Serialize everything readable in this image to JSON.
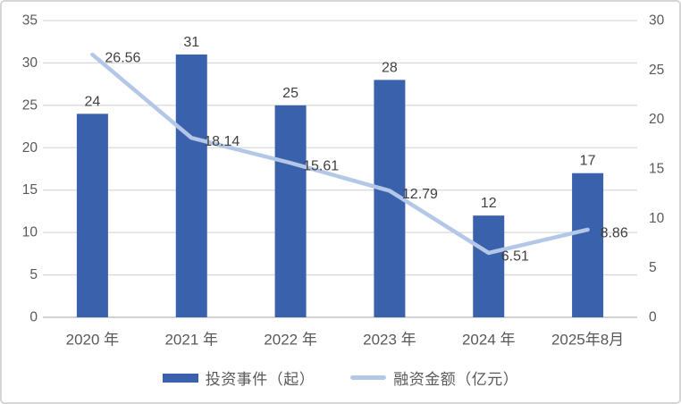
{
  "frame": {
    "background": "#ffffff",
    "border_color": "#d5d5d5"
  },
  "chart_data": {
    "type": "combo",
    "categories": [
      "2020 年",
      "2021 年",
      "2022 年",
      "2023 年",
      "2024 年",
      "2025年8月"
    ],
    "series": [
      {
        "name": "投资事件（起）",
        "type": "bar",
        "axis": "left",
        "color": "#3A62AC",
        "values": [
          24,
          31,
          25,
          28,
          12,
          17
        ],
        "labels": [
          "24",
          "31",
          "25",
          "28",
          "12",
          "17"
        ]
      },
      {
        "name": "融资金额（亿元）",
        "type": "line",
        "axis": "right",
        "color": "#B4C7E7",
        "values": [
          26.56,
          18.14,
          15.61,
          12.79,
          6.51,
          8.86
        ],
        "labels": [
          "26.56",
          "18.14",
          "15.61",
          "12.79",
          "6.51",
          "8.86"
        ]
      }
    ],
    "left_axis": {
      "min": 0,
      "max": 35,
      "step": 5,
      "tick_labels": [
        "0",
        "5",
        "10",
        "15",
        "20",
        "25",
        "30",
        "35"
      ]
    },
    "right_axis": {
      "min": 0,
      "max": 30,
      "step": 5,
      "tick_labels": [
        "0",
        "5",
        "10",
        "15",
        "20",
        "25",
        "30"
      ]
    },
    "grid": true,
    "legend_position": "bottom",
    "gridline_color": "#D9D9D9",
    "axis_line_color": "#D2D2D2",
    "axis_text_color": "#595959",
    "data_label_color": "#404040"
  }
}
